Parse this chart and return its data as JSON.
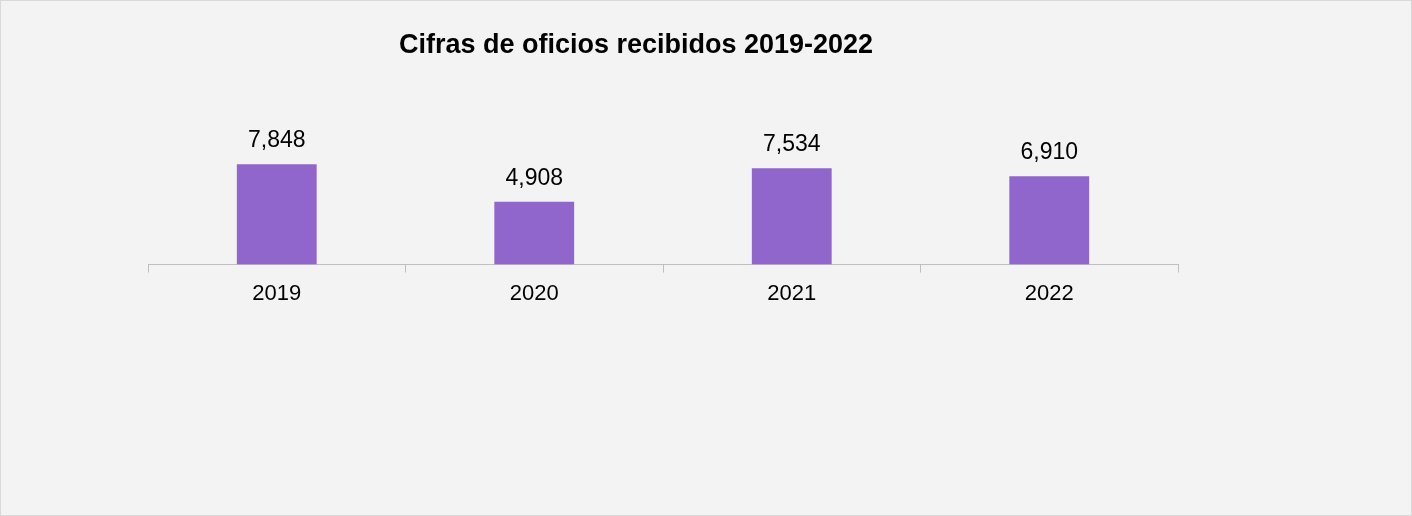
{
  "chart_data": {
    "type": "bar",
    "title": "Cifras de oficios recibidos 2019-2022",
    "categories": [
      "2019",
      "2020",
      "2021",
      "2022"
    ],
    "values": [
      7848,
      4908,
      7534,
      6910
    ],
    "value_labels": [
      "7,848",
      "4,908",
      "7,534",
      "6,910"
    ],
    "color": "#9166cc"
  }
}
